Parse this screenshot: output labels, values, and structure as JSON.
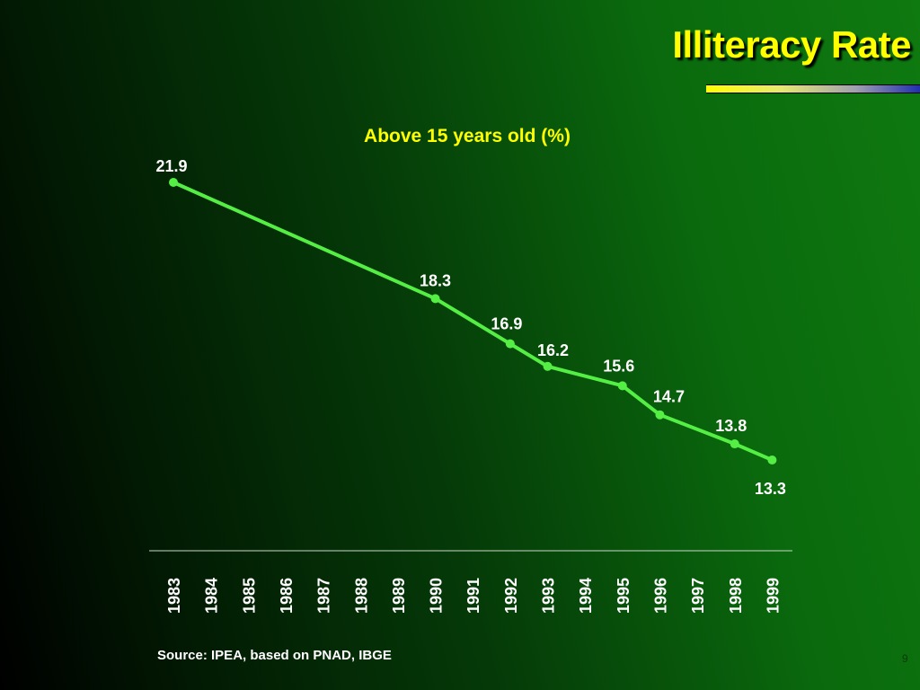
{
  "slide": {
    "title": "Illiteracy Rate",
    "source": "Source: IPEA, based on PNAD, IBGE",
    "page_number": "9"
  },
  "colors": {
    "line": "#55ee44",
    "title": "#ffff00",
    "subtitle": "#ffff00",
    "label": "#ffffff"
  },
  "chart_data": {
    "type": "line",
    "title": "Above 15  years old (%)",
    "categories": [
      "1983",
      "1984",
      "1985",
      "1986",
      "1987",
      "1988",
      "1989",
      "1990",
      "1991",
      "1992",
      "1993",
      "1994",
      "1995",
      "1996",
      "1997",
      "1998",
      "1999"
    ],
    "points": [
      {
        "x": "1983",
        "y": 21.9
      },
      {
        "x": "1990",
        "y": 18.3
      },
      {
        "x": "1992",
        "y": 16.9
      },
      {
        "x": "1993",
        "y": 16.2
      },
      {
        "x": "1995",
        "y": 15.6
      },
      {
        "x": "1996",
        "y": 14.7
      },
      {
        "x": "1998",
        "y": 13.8
      },
      {
        "x": "1999",
        "y": 13.3
      }
    ],
    "data_labels": [
      "21.9",
      "18.3",
      "16.9",
      "16.2",
      "15.6",
      "14.7",
      "13.8",
      "13.3"
    ],
    "xlabel": "",
    "ylabel": "",
    "grid": false,
    "legend": "none"
  }
}
